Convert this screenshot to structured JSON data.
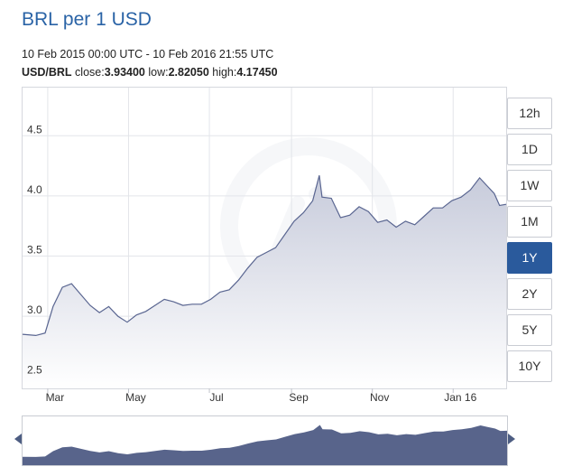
{
  "header": {
    "title": "BRL per 1 USD",
    "date_range": "10 Feb 2015 00:00 UTC - 10 Feb 2016 21:55 UTC",
    "pair": "USD/BRL",
    "close_label": " close:",
    "close_value": "3.93400",
    "low_label": " low:",
    "low_value": "2.82050",
    "high_label": " high:",
    "high_value": "4.17450"
  },
  "timeframes": [
    "12h",
    "1D",
    "1W",
    "1M",
    "1Y",
    "2Y",
    "5Y",
    "10Y"
  ],
  "active_timeframe": "1Y",
  "colors": {
    "line": "#5a6691",
    "area_top": "#c7cbdb",
    "area_bottom": "#ffffff",
    "grid": "#e3e5ea",
    "accent": "#2a5a9c",
    "navigator_fill": "#58648b"
  },
  "chart_data": {
    "type": "area",
    "x_ticks": [
      "Mar",
      "May",
      "Jul",
      "Sep",
      "Nov",
      "Jan 16"
    ],
    "y_ticks": [
      "2.5",
      "3.0",
      "3.5",
      "4.0",
      "4.5"
    ],
    "ylim": [
      2.4,
      4.9
    ],
    "grid": true,
    "x": [
      "2015-02-10",
      "2015-02-20",
      "2015-02-27",
      "2015-03-05",
      "2015-03-12",
      "2015-03-19",
      "2015-03-26",
      "2015-04-02",
      "2015-04-09",
      "2015-04-16",
      "2015-04-23",
      "2015-04-30",
      "2015-05-07",
      "2015-05-14",
      "2015-05-21",
      "2015-05-28",
      "2015-06-04",
      "2015-06-11",
      "2015-06-18",
      "2015-06-25",
      "2015-07-02",
      "2015-07-09",
      "2015-07-16",
      "2015-07-23",
      "2015-07-30",
      "2015-08-06",
      "2015-08-13",
      "2015-08-20",
      "2015-08-27",
      "2015-09-03",
      "2015-09-10",
      "2015-09-17",
      "2015-09-22",
      "2015-09-24",
      "2015-10-01",
      "2015-10-08",
      "2015-10-15",
      "2015-10-22",
      "2015-10-29",
      "2015-11-05",
      "2015-11-12",
      "2015-11-19",
      "2015-11-26",
      "2015-12-03",
      "2015-12-10",
      "2015-12-17",
      "2015-12-24",
      "2015-12-31",
      "2016-01-07",
      "2016-01-14",
      "2016-01-21",
      "2016-01-26",
      "2016-02-01",
      "2016-02-05",
      "2016-02-10"
    ],
    "values": [
      2.85,
      2.84,
      2.86,
      3.08,
      3.24,
      3.27,
      3.18,
      3.09,
      3.03,
      3.08,
      3.0,
      2.95,
      3.01,
      3.04,
      3.09,
      3.14,
      3.12,
      3.09,
      3.1,
      3.1,
      3.14,
      3.2,
      3.22,
      3.3,
      3.4,
      3.49,
      3.53,
      3.57,
      3.68,
      3.79,
      3.86,
      3.96,
      4.17,
      3.99,
      3.98,
      3.82,
      3.84,
      3.91,
      3.87,
      3.78,
      3.8,
      3.74,
      3.79,
      3.76,
      3.83,
      3.9,
      3.9,
      3.96,
      3.99,
      4.05,
      4.15,
      4.09,
      4.02,
      3.92,
      3.93
    ]
  }
}
